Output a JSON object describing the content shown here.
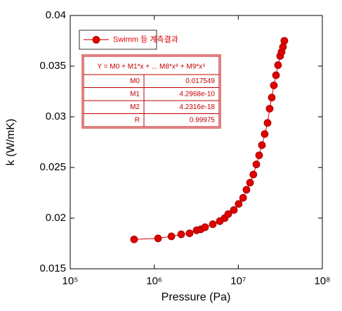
{
  "chart_data": {
    "type": "scatter",
    "x_label": "Pressure (Pa)",
    "y_label": "k (W/mK)",
    "xscale": "log",
    "xlim": [
      100000,
      100000000
    ],
    "ylim": [
      0.015,
      0.04
    ],
    "xticks": [
      {
        "value": 100000,
        "label": "10⁵"
      },
      {
        "value": 1000000,
        "label": "10⁶"
      },
      {
        "value": 10000000,
        "label": "10⁷"
      },
      {
        "value": 100000000,
        "label": "10⁸"
      }
    ],
    "yticks": [
      0.015,
      0.02,
      0.025,
      0.03,
      0.035,
      0.04
    ],
    "legend": "upper left",
    "x": [
      575000,
      1110000,
      1600000,
      2090000,
      2630000,
      3190000,
      3580000,
      4020000,
      4970000,
      6020000,
      6890000,
      7590000,
      8850000,
      10100000,
      11400000,
      12500000,
      13800000,
      15100000,
      16400000,
      17700000,
      19100000,
      20600000,
      22300000,
      23600000,
      25000000,
      26500000,
      28100000,
      29700000,
      31500000,
      32700000,
      34000000,
      35300000
    ],
    "series": [
      {
        "name": "Swimm 등 계측결과",
        "color": "#e00000",
        "values": [
          0.0179,
          0.018,
          0.0182,
          0.0184,
          0.0185,
          0.0188,
          0.0189,
          0.0191,
          0.0194,
          0.0197,
          0.02,
          0.0204,
          0.0208,
          0.0214,
          0.022,
          0.0228,
          0.0235,
          0.0243,
          0.0253,
          0.0262,
          0.0272,
          0.0283,
          0.0294,
          0.0308,
          0.0319,
          0.0331,
          0.0341,
          0.0351,
          0.036,
          0.0364,
          0.0369,
          0.0375
        ]
      }
    ],
    "fit_table": {
      "header": "Y = M0 + M1*x + ... M8*x⁸ + M9*x⁹",
      "rows": [
        [
          "M0",
          0.017549
        ],
        [
          "M1",
          4.2968e-10
        ],
        [
          "M2",
          4.2316e-18
        ],
        [
          "R",
          0.99975
        ]
      ]
    }
  }
}
